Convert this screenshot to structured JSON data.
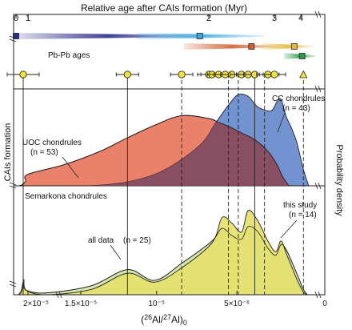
{
  "chart_data": {
    "type": "area",
    "top_axis": {
      "label": "Relative age after CAIs formation (Myr)",
      "ticks": [
        {
          "value": 0,
          "label": "0"
        },
        {
          "value": 1,
          "label": "1"
        },
        {
          "value": 2,
          "label": "2"
        },
        {
          "value": 3,
          "label": "3"
        },
        {
          "value": 4,
          "label": "4"
        }
      ]
    },
    "bottom_axis": {
      "label": "(26Al/27Al)0",
      "ticks": [
        {
          "value": 2e-05,
          "label": "2×10⁻⁵"
        },
        {
          "value": 1.5e-05,
          "label": "1.5×10⁻⁵"
        },
        {
          "value": 1e-05,
          "label": "10⁻⁵"
        },
        {
          "value": 5e-06,
          "label": "5×10⁻⁶"
        },
        {
          "value": 0,
          "label": "0"
        }
      ]
    },
    "left_label": "CAIs formation",
    "right_label": "Probability density",
    "pbpb": {
      "label": "Pb-Pb ages",
      "points": [
        {
          "age": 0.0,
          "color": "#2c2c8c"
        },
        {
          "age": 1.95,
          "color": "#3fa9e0"
        },
        {
          "age": 2.65,
          "color": "#d0602e"
        },
        {
          "age": 3.75,
          "color": "#e8b83a"
        },
        {
          "age": 4.05,
          "color": "#2e9a4a"
        }
      ]
    },
    "study_ages": [
      0.6,
      1.55,
      1.85,
      2.0,
      2.05,
      2.15,
      2.25,
      2.35,
      2.5,
      2.6,
      2.7,
      2.9,
      3.0
    ],
    "study_upper_limit": 4.1,
    "upper_panel": {
      "series": [
        {
          "name": "UOC chondrules",
          "n_label": "(n = 53)",
          "color": "#e8735a",
          "x": [
            0.25,
            0.5,
            0.8,
            1.0,
            1.2,
            1.4,
            1.55,
            1.7,
            1.85,
            2.0,
            2.15,
            2.3,
            2.5,
            2.7,
            2.9,
            3.1,
            3.3,
            3.55
          ],
          "y": [
            0,
            0.01,
            0.05,
            0.12,
            0.22,
            0.36,
            0.5,
            0.63,
            0.73,
            0.7,
            0.66,
            0.62,
            0.55,
            0.48,
            0.36,
            0.22,
            0.1,
            0
          ]
        },
        {
          "name": "CC chondrules",
          "n_label": "(n = 43)",
          "color": "#5b7fc8",
          "x": [
            1.35,
            1.55,
            1.75,
            1.95,
            2.1,
            2.3,
            2.45,
            2.6,
            2.75,
            2.95,
            3.1,
            3.25,
            3.45,
            3.65,
            3.85,
            4.1,
            4.3
          ],
          "y": [
            0,
            0.04,
            0.16,
            0.42,
            0.65,
            0.84,
            0.95,
            0.93,
            0.82,
            0.78,
            0.88,
            0.9,
            0.72,
            0.6,
            0.45,
            0.17,
            0
          ]
        }
      ]
    },
    "lower_panel": {
      "title": "Semarkona chondrules",
      "series": [
        {
          "name": "all data",
          "n_label": "(n = 25)",
          "color": "#d6e6b0",
          "x": [
            0.2,
            0.45,
            0.65,
            0.85,
            1.1,
            1.35,
            1.55,
            1.7,
            1.85,
            2.05,
            2.2,
            2.35,
            2.5,
            2.6,
            2.75,
            2.9,
            3.05,
            3.25,
            3.45,
            3.7,
            3.9,
            4.1,
            4.25
          ],
          "y": [
            0,
            0.03,
            0.12,
            0.05,
            0.02,
            0.1,
            0.28,
            0.16,
            0.35,
            0.6,
            0.74,
            0.66,
            0.62,
            0.76,
            0.7,
            0.52,
            0.44,
            0.56,
            0.5,
            0.34,
            0.2,
            0.06,
            0
          ]
        },
        {
          "name": "this study",
          "n_label": "(n = 14)",
          "color": "#e4e06a",
          "x": [
            0.2,
            0.45,
            0.65,
            0.85,
            1.1,
            1.35,
            1.55,
            1.7,
            1.85,
            2.05,
            2.2,
            2.35,
            2.5,
            2.6,
            2.75,
            2.9,
            3.05,
            3.25,
            3.45,
            3.7,
            3.9,
            4.1,
            4.25
          ],
          "y": [
            0,
            0.05,
            0.17,
            0.05,
            0.0,
            0.06,
            0.24,
            0.14,
            0.3,
            0.58,
            0.86,
            0.8,
            0.7,
            0.94,
            0.82,
            0.6,
            0.48,
            0.6,
            0.46,
            0.28,
            0.14,
            0.03,
            0
          ]
        }
      ]
    },
    "vertical_lines": [
      {
        "age": 0.6,
        "style": "solid"
      },
      {
        "age": 1.55,
        "style": "solid"
      },
      {
        "age": 1.85,
        "style": "dashed"
      },
      {
        "age": 2.3,
        "style": "dashed"
      },
      {
        "age": 2.45,
        "style": "dashed"
      },
      {
        "age": 2.7,
        "style": "solid"
      },
      {
        "age": 2.85,
        "style": "dashed"
      },
      {
        "age": 4.1,
        "style": "dashed"
      }
    ]
  }
}
